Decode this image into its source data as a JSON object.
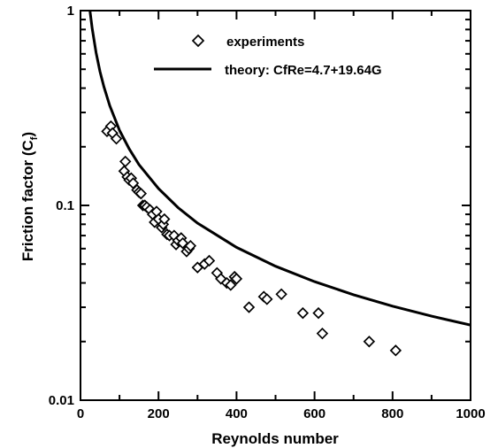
{
  "chart_data": {
    "type": "scatter",
    "title": "",
    "xlabel": "Reynolds number",
    "ylabel_main": "Friction factor (C",
    "ylabel_sub": "f",
    "ylabel_close": ")",
    "xscale": "linear",
    "yscale": "log",
    "xlim": [
      0,
      1000
    ],
    "ylim": [
      0.01,
      1
    ],
    "x_ticks": [
      "0",
      "200",
      "400",
      "600",
      "800",
      "1000"
    ],
    "y_ticks": [
      "0.01",
      "0.1",
      "1"
    ],
    "legend_position": "top-right",
    "series": [
      {
        "name": "experiments",
        "kind": "scatter",
        "marker": "diamond",
        "points": [
          [
            68,
            0.24
          ],
          [
            78,
            0.255
          ],
          [
            82,
            0.235
          ],
          [
            92,
            0.22
          ],
          [
            112,
            0.15
          ],
          [
            115,
            0.168
          ],
          [
            120,
            0.14
          ],
          [
            125,
            0.135
          ],
          [
            130,
            0.138
          ],
          [
            135,
            0.13
          ],
          [
            145,
            0.12
          ],
          [
            150,
            0.117
          ],
          [
            155,
            0.115
          ],
          [
            160,
            0.1
          ],
          [
            165,
            0.1
          ],
          [
            170,
            0.098
          ],
          [
            178,
            0.095
          ],
          [
            185,
            0.09
          ],
          [
            190,
            0.082
          ],
          [
            195,
            0.093
          ],
          [
            200,
            0.085
          ],
          [
            208,
            0.077
          ],
          [
            212,
            0.08
          ],
          [
            215,
            0.085
          ],
          [
            222,
            0.071
          ],
          [
            228,
            0.07
          ],
          [
            240,
            0.07
          ],
          [
            245,
            0.063
          ],
          [
            250,
            0.066
          ],
          [
            258,
            0.068
          ],
          [
            262,
            0.064
          ],
          [
            272,
            0.058
          ],
          [
            278,
            0.06
          ],
          [
            282,
            0.062
          ],
          [
            300,
            0.048
          ],
          [
            318,
            0.05
          ],
          [
            330,
            0.052
          ],
          [
            350,
            0.045
          ],
          [
            360,
            0.042
          ],
          [
            375,
            0.04
          ],
          [
            385,
            0.039
          ],
          [
            395,
            0.043
          ],
          [
            400,
            0.042
          ],
          [
            432,
            0.03
          ],
          [
            470,
            0.034
          ],
          [
            478,
            0.033
          ],
          [
            515,
            0.035
          ],
          [
            570,
            0.028
          ],
          [
            610,
            0.028
          ],
          [
            620,
            0.022
          ],
          [
            740,
            0.02
          ],
          [
            808,
            0.018
          ]
        ]
      },
      {
        "name": "theory: CfRe=4.7+19.64G",
        "kind": "line",
        "formula": "Cf = 24.34 / Re",
        "x": [
          20,
          25,
          30,
          40,
          50,
          60,
          75,
          100,
          125,
          150,
          200,
          250,
          300,
          400,
          500,
          600,
          700,
          800,
          900,
          1000
        ],
        "y": [
          1.217,
          0.974,
          0.811,
          0.609,
          0.487,
          0.406,
          0.325,
          0.243,
          0.195,
          0.162,
          0.122,
          0.0974,
          0.0811,
          0.0609,
          0.0487,
          0.0406,
          0.0348,
          0.0304,
          0.027,
          0.0243
        ]
      }
    ],
    "colors": {
      "ink": "#000000",
      "background": "#ffffff"
    }
  }
}
